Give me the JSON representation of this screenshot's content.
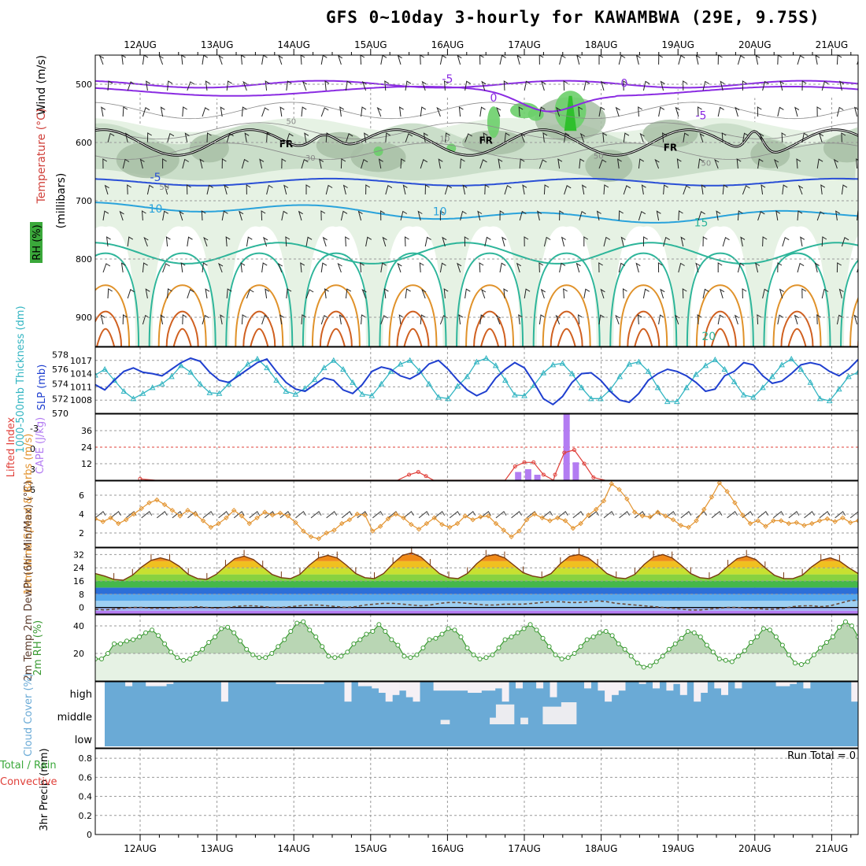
{
  "title": "GFS 0~10day 3-hourly for KAWAMBWA (29E, 9.75S)",
  "colors": {
    "rh_light": "#e6f2e4",
    "rh_mid": "#c7dcc5",
    "rh_dark": "#a8c0a6",
    "rh_green": "#6ccf6a",
    "rh_bright": "#2fc02c",
    "thick": "#33b5c2",
    "slp": "#1f3fcf",
    "cape": "#b37cf2",
    "li": "#e0403a",
    "wind_line": "#e39430",
    "rh2m": "#3a9a32",
    "cloud": "#6aaad6",
    "temp_red": "#d0403a",
    "frz": "#000000",
    "purple": "#8a2be2",
    "blue_iso": "#2a4fd6",
    "cyan_iso": "#2aa3db",
    "teal_iso": "#2db59a",
    "orange_iso": "#e0922a",
    "dark_orange_iso": "#d06020",
    "magenta_iso": "#d0207a"
  },
  "chart_data": [
    {
      "id": "upper_air",
      "type": "contour",
      "ylabel": "(millibars)",
      "side_labels": [
        "Wind (m/s)",
        "Temperature (°C)",
        "RH (%)"
      ],
      "y_ticks": [
        500,
        600,
        700,
        800,
        900
      ],
      "ylim": [
        450,
        950
      ],
      "rh_ticks": [
        50,
        30,
        10
      ],
      "isotherm_labels": [
        {
          "text": "-5",
          "t": 4.0,
          "p": 497
        },
        {
          "text": "-5",
          "t": 7.3,
          "p": 560
        },
        {
          "text": "-5",
          "t": 0.2,
          "p": 666
        },
        {
          "text": "10",
          "t": 0.2,
          "p": 720
        },
        {
          "text": "10",
          "t": 3.9,
          "p": 725
        },
        {
          "text": "15",
          "t": 7.3,
          "p": 744
        },
        {
          "text": "20",
          "t": 7.4,
          "p": 939
        },
        {
          "text": "0",
          "t": 4.6,
          "p": 530
        },
        {
          "text": "0",
          "t": 6.3,
          "p": 505
        }
      ],
      "freezing_labels": [
        {
          "text": "FR",
          "t": 1.9,
          "p": 608
        },
        {
          "text": "FR",
          "t": 4.5,
          "p": 602
        },
        {
          "text": "FR",
          "t": 6.9,
          "p": 614
        }
      ]
    },
    {
      "id": "thickness_slp",
      "type": "line",
      "ylabel_left": "1000-500mb Thickness (dm)",
      "ylabel_right": "SLP (mb)",
      "thick_ticks": [
        578,
        576,
        574,
        572,
        570
      ],
      "slp_ticks": [
        1017,
        1014,
        1011,
        1008
      ],
      "thick_range": [
        570,
        579
      ],
      "slp_range": [
        1005,
        1020
      ],
      "series": [
        {
          "name": "Thickness",
          "values": [
            575.2,
            576.0,
            574.5,
            573.0,
            572.0,
            572.7,
            573.5,
            574.0,
            575.0,
            576.5,
            575.6,
            574.0,
            572.8,
            572.7,
            574.0,
            575.4,
            576.7,
            577.4,
            576.2,
            574.5,
            573.0,
            572.6,
            573.4,
            574.6,
            576.2,
            577.2,
            576.0,
            574.2,
            572.6,
            572.4,
            574.0,
            575.7,
            576.7,
            577.2,
            575.8,
            574.0,
            572.2,
            572.0,
            573.7,
            575.0,
            577.0,
            577.5,
            576.5,
            574.5,
            572.5,
            572.4,
            573.8,
            575.5,
            576.6,
            576.8,
            575.4,
            573.5,
            572.0,
            572.0,
            573.2,
            575.0,
            576.7,
            577.0,
            575.7,
            573.5,
            571.6,
            571.6,
            573.5,
            575.3,
            576.5,
            577.3,
            576.0,
            574.3,
            572.5,
            572.2,
            573.5,
            575.0,
            576.6,
            577.4,
            576.0,
            574.2,
            572.0,
            571.7,
            573.3,
            575.0,
            575.6
          ]
        },
        {
          "name": "SLP",
          "values": [
            1011.5,
            1010.3,
            1012.5,
            1014.5,
            1015.3,
            1014.3,
            1014.0,
            1013.5,
            1015.0,
            1016.5,
            1017.5,
            1016.8,
            1014.3,
            1012.5,
            1012.0,
            1013.5,
            1015.0,
            1016.5,
            1017.3,
            1014.5,
            1012.0,
            1010.5,
            1010.0,
            1011.5,
            1013.0,
            1012.5,
            1010.3,
            1009.5,
            1011.5,
            1014.5,
            1015.5,
            1015.0,
            1013.5,
            1012.8,
            1014.0,
            1016.2,
            1017.0,
            1015.0,
            1012.5,
            1010.3,
            1009.0,
            1010.0,
            1013.0,
            1015.0,
            1016.5,
            1015.3,
            1012.0,
            1008.3,
            1007.0,
            1008.8,
            1012.0,
            1014.0,
            1014.2,
            1012.5,
            1010.0,
            1008.0,
            1007.5,
            1009.5,
            1012.5,
            1014.0,
            1015.0,
            1014.5,
            1013.5,
            1012.0,
            1010.0,
            1010.5,
            1013.5,
            1014.5,
            1016.5,
            1016.0,
            1013.5,
            1011.8,
            1012.3,
            1014.0,
            1016.0,
            1016.5,
            1016.0,
            1014.5,
            1013.5,
            1015.0,
            1017.2
          ]
        }
      ]
    },
    {
      "id": "cape_li",
      "type": "bar",
      "ylabel_left": "Lifted Index",
      "ylabel_right": "CAPE (J/kg)",
      "li_ticks": [
        -3,
        0,
        3,
        6
      ],
      "cape_ticks": [
        36,
        24,
        12
      ],
      "cape_range": [
        0,
        48
      ],
      "cape_bars": [
        {
          "t": 4.92,
          "value": 6
        },
        {
          "t": 5.05,
          "value": 8
        },
        {
          "t": 5.17,
          "value": 4
        },
        {
          "t": 5.55,
          "value": 48
        },
        {
          "t": 5.67,
          "value": 13
        }
      ],
      "cape_curve": [
        {
          "t": 0.0,
          "v": 1
        },
        {
          "t": 0.2,
          "v": 0
        },
        {
          "t": 3.35,
          "v": 0
        },
        {
          "t": 3.5,
          "v": 4
        },
        {
          "t": 3.62,
          "v": 6
        },
        {
          "t": 3.72,
          "v": 3
        },
        {
          "t": 3.82,
          "v": 0
        },
        {
          "t": 4.75,
          "v": 0
        },
        {
          "t": 4.88,
          "v": 10
        },
        {
          "t": 5.0,
          "v": 13
        },
        {
          "t": 5.12,
          "v": 13
        },
        {
          "t": 5.25,
          "v": 4
        },
        {
          "t": 5.38,
          "v": 0
        },
        {
          "t": 5.4,
          "v": 4
        },
        {
          "t": 5.52,
          "v": 20
        },
        {
          "t": 5.65,
          "v": 22
        },
        {
          "t": 5.78,
          "v": 12
        },
        {
          "t": 5.9,
          "v": 2
        },
        {
          "t": 6.05,
          "v": 0
        }
      ]
    },
    {
      "id": "wind10m",
      "type": "line",
      "ylabel": "10m Wind Speed & Barbs (m/s)",
      "y_ticks": [
        6,
        4,
        2
      ],
      "ylim": [
        0.5,
        7.5
      ],
      "values": [
        3.5,
        3.2,
        3.6,
        3.0,
        3.4,
        4.0,
        4.6,
        5.2,
        5.5,
        5.0,
        4.4,
        3.8,
        4.4,
        4.0,
        3.3,
        2.6,
        3.0,
        3.6,
        4.4,
        3.8,
        3.0,
        3.6,
        4.2,
        3.9,
        4.1,
        3.8,
        3.1,
        2.2,
        1.6,
        1.4,
        2.0,
        2.3,
        3.0,
        3.4,
        4.0,
        3.9,
        2.2,
        2.7,
        3.5,
        4.0,
        3.6,
        2.9,
        2.4,
        3.0,
        3.6,
        2.9,
        2.6,
        3.0,
        3.8,
        3.4,
        3.7,
        3.8,
        3.0,
        2.3,
        1.6,
        2.2,
        3.4,
        4.0,
        3.6,
        3.3,
        3.6,
        3.3,
        2.5,
        3.0,
        3.9,
        4.5,
        5.4,
        7.2,
        6.6,
        5.6,
        4.2,
        3.8,
        3.7,
        4.2,
        3.8,
        3.4,
        2.8,
        2.6,
        3.3,
        4.5,
        5.8,
        7.3,
        6.4,
        5.2,
        3.9,
        3.0,
        3.3,
        2.7,
        3.3,
        3.3,
        3.0,
        3.1,
        2.8,
        3.0,
        3.3,
        3.5,
        3.2,
        3.6,
        3.1,
        3.3
      ]
    },
    {
      "id": "temp2m",
      "type": "area",
      "ylabel": "2m Temp 2m DewPt (6hr Min/Max) (°C)",
      "y_ticks": [
        32,
        24,
        16,
        8,
        0
      ],
      "ylim": [
        -4,
        36
      ],
      "temp": [
        20.5,
        19.0,
        17.0,
        16.5,
        19.5,
        24.5,
        28.5,
        30.0,
        28.5,
        25.0,
        20.0,
        17.5,
        17.0,
        20.0,
        25.0,
        29.5,
        31.0,
        29.0,
        24.5,
        20.0,
        18.0,
        17.5,
        20.0,
        25.5,
        30.0,
        31.5,
        30.0,
        25.5,
        20.5,
        18.0,
        17.5,
        20.5,
        26.5,
        31.5,
        33.0,
        30.5,
        25.5,
        20.5,
        18.0,
        17.5,
        20.5,
        26.5,
        31.0,
        32.0,
        30.0,
        25.5,
        21.0,
        19.0,
        18.0,
        20.5,
        26.5,
        31.0,
        32.0,
        30.0,
        25.5,
        20.5,
        18.0,
        17.5,
        20.0,
        26.0,
        30.5,
        32.0,
        30.0,
        25.5,
        20.5,
        18.0,
        17.5,
        20.0,
        25.0,
        29.5,
        31.0,
        29.0,
        24.0,
        19.5,
        17.5,
        17.5,
        19.5,
        24.5,
        28.5,
        30.0,
        28.0,
        24.0,
        20.5
      ],
      "dewpt": [
        -1.0,
        -1.5,
        -1.0,
        -0.5,
        0.0,
        0.0,
        -0.5,
        -0.5,
        -0.5,
        0.0,
        0.0,
        0.5,
        0.0,
        -0.5,
        0.0,
        0.5,
        1.0,
        1.0,
        0.5,
        0.0,
        0.0,
        0.5,
        1.0,
        1.5,
        1.5,
        1.0,
        0.5,
        0.0,
        0.5,
        1.5,
        2.0,
        2.5,
        2.5,
        2.0,
        1.5,
        1.0,
        1.5,
        2.5,
        3.0,
        3.0,
        2.5,
        2.0,
        1.5,
        1.5,
        2.0,
        2.0,
        2.0,
        2.5,
        3.0,
        3.5,
        3.5,
        3.0,
        3.0,
        3.5,
        4.0,
        3.5,
        2.5,
        2.0,
        1.5,
        1.0,
        0.5,
        0.0,
        -0.5,
        -1.0,
        -1.5,
        -1.5,
        -1.0,
        -0.5,
        0.0,
        0.0,
        -0.5,
        -0.5,
        -1.0,
        -1.0,
        -0.5,
        0.5,
        1.0,
        1.0,
        0.5,
        1.0,
        2.5,
        4.0,
        4.5
      ]
    },
    {
      "id": "rh2m",
      "type": "area",
      "ylabel": "2m RH (%)",
      "y_ticks": [
        40,
        20
      ],
      "ylim": [
        0,
        48
      ],
      "values": [
        16,
        16,
        20,
        27,
        27,
        29,
        30,
        32,
        35,
        37,
        33,
        27,
        21,
        17,
        15,
        16,
        20,
        23,
        28,
        32,
        38,
        39,
        35,
        29,
        23,
        19,
        17,
        17,
        20,
        25,
        30,
        36,
        42,
        43,
        37,
        32,
        25,
        18,
        17,
        18,
        21,
        27,
        30,
        34,
        36,
        41,
        36,
        30,
        26,
        18,
        17,
        19,
        24,
        30,
        31,
        34,
        38,
        37,
        32,
        24,
        19,
        16,
        17,
        19,
        24,
        30,
        32,
        35,
        38,
        41,
        37,
        31,
        25,
        19,
        16,
        17,
        20,
        25,
        30,
        32,
        35,
        36,
        33,
        27,
        23,
        18,
        13,
        10,
        11,
        14,
        18,
        23,
        27,
        31,
        36,
        35,
        32,
        26,
        21,
        16,
        15,
        14,
        18,
        22,
        28,
        32,
        38,
        37,
        32,
        26,
        19,
        13,
        12,
        14,
        19,
        24,
        28,
        32,
        39,
        43,
        40,
        32
      ]
    },
    {
      "id": "cloud",
      "type": "bar",
      "ylabel": "Cloud Cover (%)",
      "levels": [
        "high",
        "middle",
        "low"
      ],
      "high_gaps": [
        0,
        0,
        0,
        2,
        0,
        0,
        2,
        2,
        2,
        1,
        0,
        0,
        0,
        0,
        0,
        0,
        0,
        9,
        0,
        0,
        0,
        0,
        0,
        0,
        0,
        1,
        1,
        1,
        1,
        1,
        1,
        1,
        0,
        0,
        0,
        9,
        0,
        2,
        2,
        3,
        5,
        9,
        6,
        4,
        7,
        9,
        0,
        0,
        4,
        4,
        4,
        4,
        4,
        5,
        5,
        4,
        4,
        3,
        9,
        0,
        3,
        0,
        0,
        3,
        0,
        7,
        0,
        0,
        0,
        0,
        3,
        0,
        4,
        9,
        6,
        4,
        0,
        0,
        1,
        0,
        3,
        0,
        4,
        1,
        6,
        0,
        9,
        5,
        0,
        3,
        6,
        0,
        3,
        0,
        0,
        0,
        0,
        0,
        2,
        2,
        1,
        0,
        3,
        0,
        0,
        0,
        0,
        0,
        0,
        9
      ],
      "mid_gaps": [
        {
          "t": 3.97,
          "w": 0.12,
          "d": 0.2
        },
        {
          "t": 4.62,
          "w": 0.14,
          "d": 0.3
        },
        {
          "t": 4.75,
          "w": 0.24,
          "d": 0.9
        },
        {
          "t": 5.0,
          "w": 0.1,
          "d": 0.3
        },
        {
          "t": 5.45,
          "w": 0.42,
          "d": 0.8
        },
        {
          "t": 5.58,
          "w": 0.2,
          "d": 1.0
        }
      ]
    },
    {
      "id": "precip",
      "type": "bar",
      "ylabel": "3hr Precip (mm)",
      "legend": [
        "Total / Rain",
        "Convective"
      ],
      "y_ticks": [
        0.8,
        0.6,
        0.4,
        0.2,
        0
      ],
      "ylim": [
        0,
        0.9
      ],
      "values": [],
      "run_total_label": "Run Total = 0"
    }
  ],
  "dates": [
    "12AUG",
    "13AUG",
    "14AUG",
    "15AUG",
    "16AUG",
    "17AUG",
    "18AUG",
    "19AUG",
    "20AUG",
    "21AUG"
  ]
}
